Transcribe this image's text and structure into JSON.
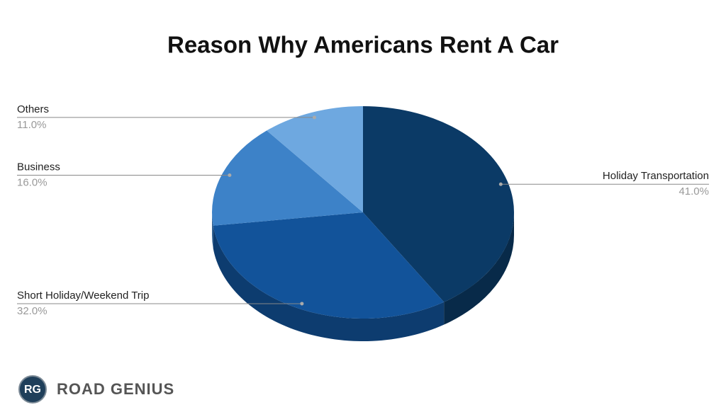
{
  "chart_data": {
    "type": "pie3d",
    "title": "Reason Why Americans Rent A Car",
    "categories": [
      "Holiday Transportation",
      "Short Holiday/Weekend Trip",
      "Business",
      "Others"
    ],
    "values": [
      41,
      32,
      16,
      11
    ],
    "value_labels": [
      "41.0%",
      "32.0%",
      "16.0%",
      "11.0%"
    ],
    "colors": [
      "#0b3a66",
      "#12539a",
      "#3d82c8",
      "#6ea8e0"
    ]
  },
  "logo": {
    "mark": "RG",
    "text": "ROAD GENIUS"
  }
}
